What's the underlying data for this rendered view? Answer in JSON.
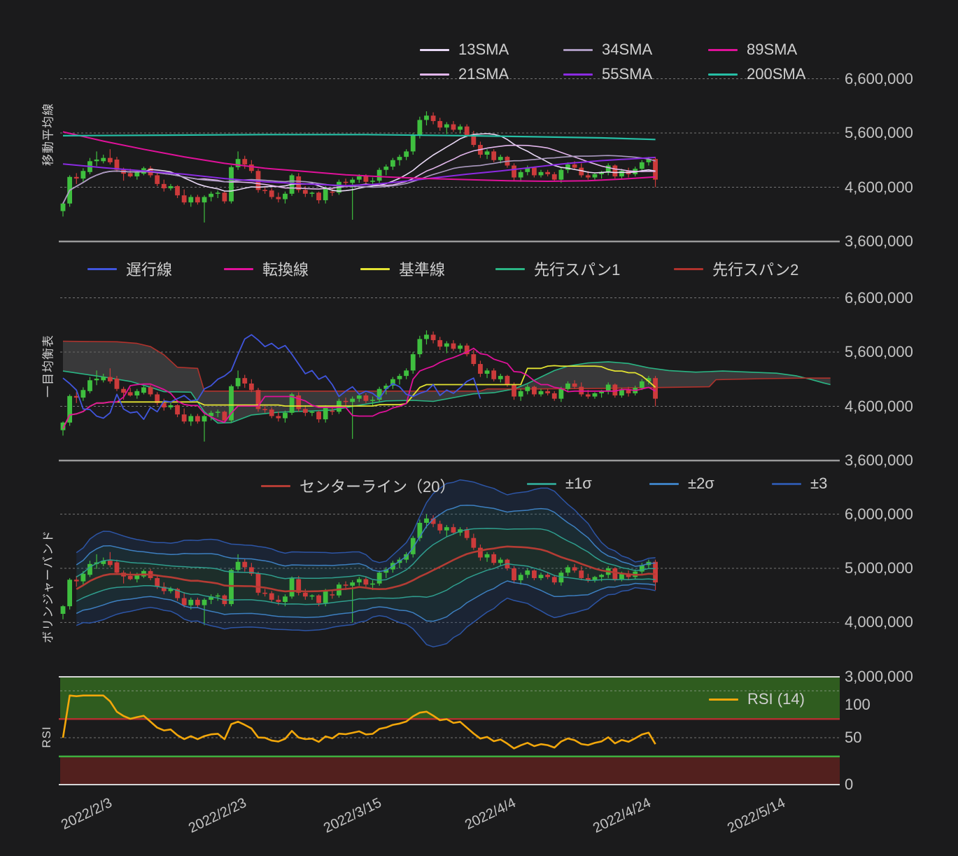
{
  "panels": {
    "sma": {
      "title": "移動平均線"
    },
    "ichimoku": {
      "title": "一目均衡表"
    },
    "bollinger": {
      "title": "ボリンジャーバンド"
    },
    "rsi": {
      "title": "RSI"
    }
  },
  "legends": {
    "sma": [
      {
        "label": "13SMA",
        "color": "#e9d9f6"
      },
      {
        "label": "34SMA",
        "color": "#ab9ac0"
      },
      {
        "label": "89SMA",
        "color": "#e0119a"
      },
      {
        "label": "21SMA",
        "color": "#e2b6ec"
      },
      {
        "label": "55SMA",
        "color": "#8b2be2"
      },
      {
        "label": "200SMA",
        "color": "#26bfa5"
      }
    ],
    "ichimoku": [
      {
        "label": "遅行線",
        "color": "#4055dd"
      },
      {
        "label": "転換線",
        "color": "#e0119a"
      },
      {
        "label": "基準線",
        "color": "#e3e332"
      },
      {
        "label": "先行スパン1",
        "color": "#2ab584"
      },
      {
        "label": "先行スパン2",
        "color": "#b0322c"
      }
    ],
    "bollinger": [
      {
        "label": "センターライン（20）",
        "color": "#b43c34"
      },
      {
        "label": "±1σ",
        "color": "#2f9e8e"
      },
      {
        "label": "±2σ",
        "color": "#3d7fc0"
      },
      {
        "label": "±3",
        "color": "#2d55a6"
      }
    ],
    "rsi": [
      {
        "label": "RSI (14)",
        "color": "#f2a70b"
      }
    ]
  },
  "axes": {
    "x_ticks": [
      {
        "label": "2022/2/3",
        "index": 0
      },
      {
        "label": "2022/2/23",
        "index": 20
      },
      {
        "label": "2022/3/15",
        "index": 40
      },
      {
        "label": "2022/4/4",
        "index": 60
      },
      {
        "label": "2022/4/24",
        "index": 80
      },
      {
        "label": "2022/5/14",
        "index": 100
      }
    ],
    "p1_yticks": [
      {
        "label": "6,600,000",
        "v": 6.6
      },
      {
        "label": "5,600,000",
        "v": 5.6
      },
      {
        "label": "4,600,000",
        "v": 4.6
      },
      {
        "label": "3,600,000",
        "v": 3.6
      }
    ],
    "p2_yticks": [
      {
        "label": "6,600,000",
        "v": 6.6
      },
      {
        "label": "5,600,000",
        "v": 5.6
      },
      {
        "label": "4,600,000",
        "v": 4.6
      },
      {
        "label": "3,600,000",
        "v": 3.6
      }
    ],
    "p3_yticks": [
      {
        "label": "6,000,000",
        "v": 6.0
      },
      {
        "label": "5,000,000",
        "v": 5.0
      },
      {
        "label": "4,000,000",
        "v": 4.0
      },
      {
        "label": "3,000,000",
        "v": 3.0
      }
    ],
    "rsi_yticks": [
      {
        "label": "100",
        "v": 100
      },
      {
        "label": "50",
        "v": 50
      },
      {
        "label": "0",
        "v": 0
      }
    ]
  },
  "colors": {
    "background": "#1b1b1c",
    "grid": "#c0c0c0",
    "panel_border": "#9a9a9a",
    "rsi_border": "#d6d6d6",
    "candle_up": "#3fbf3f",
    "candle_down": "#cc3b3b",
    "cloud_fill": "#585858",
    "bb_fill_outer": "#1e3c6e",
    "bb_fill_mid": "#1e5a6e",
    "bb_fill_inner": "#236456",
    "rsi_overbought_zone": "#2f5c1f",
    "rsi_oversold_zone": "#52201e",
    "rsi_level70_line": "#b03030",
    "rsi_level30_line": "#3fae3f"
  },
  "chart_data": {
    "type": "candlestick-multi-panel",
    "unit": "JPY (millions)",
    "x_start_label": "2022/2/3",
    "x_days_per_candle": 1,
    "ylim_price_panels_1_2": [
      3.6,
      6.6
    ],
    "ylim_price_panel_3": [
      3.0,
      6.2
    ],
    "ylim_rsi": [
      0,
      100
    ],
    "candles_m": [
      [
        4.16,
        4.32,
        4.06,
        4.3
      ],
      [
        4.3,
        4.82,
        4.24,
        4.79
      ],
      [
        4.79,
        4.86,
        4.66,
        4.76
      ],
      [
        4.76,
        4.95,
        4.7,
        4.9
      ],
      [
        4.88,
        5.14,
        4.84,
        5.08
      ],
      [
        5.08,
        5.26,
        4.99,
        5.11
      ],
      [
        5.08,
        5.2,
        5.04,
        5.14
      ],
      [
        5.14,
        5.3,
        5.02,
        5.06
      ],
      [
        5.11,
        5.16,
        4.88,
        4.92
      ],
      [
        4.92,
        4.96,
        4.72,
        4.85
      ],
      [
        4.86,
        4.94,
        4.78,
        4.8
      ],
      [
        4.8,
        4.92,
        4.74,
        4.88
      ],
      [
        4.85,
        4.98,
        4.82,
        4.95
      ],
      [
        4.95,
        4.99,
        4.78,
        4.82
      ],
      [
        4.82,
        4.86,
        4.62,
        4.66
      ],
      [
        4.66,
        4.74,
        4.52,
        4.58
      ],
      [
        4.58,
        4.66,
        4.54,
        4.62
      ],
      [
        4.62,
        4.64,
        4.4,
        4.45
      ],
      [
        4.45,
        4.56,
        4.28,
        4.32
      ],
      [
        4.32,
        4.46,
        4.24,
        4.42
      ],
      [
        4.42,
        4.46,
        4.28,
        4.32
      ],
      [
        4.32,
        4.45,
        3.95,
        4.42
      ],
      [
        4.42,
        4.52,
        4.34,
        4.48
      ],
      [
        4.48,
        4.54,
        4.4,
        4.5
      ],
      [
        4.5,
        4.52,
        4.3,
        4.34
      ],
      [
        4.34,
        5.0,
        4.3,
        4.97
      ],
      [
        4.97,
        5.26,
        4.92,
        5.12
      ],
      [
        5.12,
        5.18,
        4.94,
        5.02
      ],
      [
        5.02,
        5.1,
        4.86,
        4.9
      ],
      [
        4.9,
        4.94,
        4.5,
        4.55
      ],
      [
        4.55,
        4.62,
        4.48,
        4.54
      ],
      [
        4.54,
        4.58,
        4.38,
        4.42
      ],
      [
        4.42,
        4.5,
        4.32,
        4.38
      ],
      [
        4.38,
        4.52,
        4.3,
        4.48
      ],
      [
        4.48,
        4.85,
        4.44,
        4.82
      ],
      [
        4.8,
        4.86,
        4.5,
        4.55
      ],
      [
        4.55,
        4.62,
        4.42,
        4.48
      ],
      [
        4.48,
        4.52,
        4.42,
        4.5
      ],
      [
        4.5,
        4.52,
        4.3,
        4.36
      ],
      [
        4.36,
        4.62,
        4.3,
        4.58
      ],
      [
        4.52,
        4.58,
        4.44,
        4.5
      ],
      [
        4.5,
        4.74,
        4.46,
        4.7
      ],
      [
        4.7,
        4.76,
        4.6,
        4.68
      ],
      [
        4.68,
        4.78,
        4.0,
        4.74
      ],
      [
        4.74,
        4.84,
        4.68,
        4.8
      ],
      [
        4.8,
        4.84,
        4.66,
        4.7
      ],
      [
        4.7,
        4.78,
        4.6,
        4.72
      ],
      [
        4.72,
        4.96,
        4.68,
        4.92
      ],
      [
        4.92,
        5.02,
        4.82,
        4.98
      ],
      [
        4.98,
        5.14,
        4.92,
        5.1
      ],
      [
        5.1,
        5.2,
        5.0,
        5.16
      ],
      [
        5.16,
        5.3,
        5.1,
        5.26
      ],
      [
        5.26,
        5.6,
        5.2,
        5.56
      ],
      [
        5.56,
        5.9,
        5.5,
        5.84
      ],
      [
        5.84,
        6.0,
        5.74,
        5.92
      ],
      [
        5.92,
        5.98,
        5.76,
        5.82
      ],
      [
        5.82,
        5.88,
        5.64,
        5.7
      ],
      [
        5.7,
        5.8,
        5.58,
        5.76
      ],
      [
        5.76,
        5.82,
        5.62,
        5.66
      ],
      [
        5.66,
        5.76,
        5.6,
        5.72
      ],
      [
        5.72,
        5.76,
        5.52,
        5.56
      ],
      [
        5.56,
        5.64,
        5.34,
        5.38
      ],
      [
        5.38,
        5.44,
        5.14,
        5.2
      ],
      [
        5.2,
        5.3,
        5.12,
        5.26
      ],
      [
        5.26,
        5.3,
        5.06,
        5.1
      ],
      [
        5.1,
        5.2,
        5.04,
        5.16
      ],
      [
        5.16,
        5.18,
        4.96,
        5.0
      ],
      [
        5.0,
        5.04,
        4.72,
        4.78
      ],
      [
        4.78,
        4.92,
        4.7,
        4.88
      ],
      [
        4.88,
        5.0,
        4.82,
        4.96
      ],
      [
        4.96,
        4.98,
        4.78,
        4.82
      ],
      [
        4.82,
        4.92,
        4.78,
        4.88
      ],
      [
        4.88,
        4.92,
        4.8,
        4.84
      ],
      [
        4.84,
        4.88,
        4.7,
        4.74
      ],
      [
        4.74,
        4.96,
        4.68,
        4.92
      ],
      [
        4.92,
        5.06,
        4.86,
        5.02
      ],
      [
        5.02,
        5.08,
        4.92,
        4.96
      ],
      [
        4.96,
        5.04,
        4.78,
        4.82
      ],
      [
        4.82,
        4.9,
        4.74,
        4.78
      ],
      [
        4.78,
        4.86,
        4.74,
        4.84
      ],
      [
        4.84,
        4.9,
        4.76,
        4.88
      ],
      [
        4.88,
        5.04,
        4.82,
        5.0
      ],
      [
        5.0,
        5.02,
        4.76,
        4.8
      ],
      [
        4.8,
        4.94,
        4.76,
        4.9
      ],
      [
        4.9,
        4.96,
        4.78,
        4.84
      ],
      [
        4.84,
        4.98,
        4.8,
        4.94
      ],
      [
        4.94,
        5.1,
        4.9,
        5.06
      ],
      [
        5.06,
        5.16,
        5.0,
        5.12
      ],
      [
        5.12,
        5.16,
        4.6,
        4.74
      ]
    ],
    "computed_indicators": {
      "sma_periods_from_closes": [
        13,
        21,
        34
      ],
      "ichimoku": {
        "conversion_period": 9,
        "base_period": 26,
        "lagging_shift": 26
      },
      "bollinger": {
        "period": 20,
        "sigma_multiples": [
          1,
          2,
          3
        ]
      },
      "rsi_period": 14,
      "rsi_levels": {
        "overbought": 70,
        "midline": 50,
        "oversold": 30
      }
    },
    "overlay_lines_m": {
      "sma55": [
        [
          0,
          5.03
        ],
        [
          6,
          4.96
        ],
        [
          12,
          4.9
        ],
        [
          18,
          4.84
        ],
        [
          24,
          4.76
        ],
        [
          30,
          4.7
        ],
        [
          36,
          4.66
        ],
        [
          42,
          4.63
        ],
        [
          46,
          4.65
        ],
        [
          50,
          4.7
        ],
        [
          55,
          4.77
        ],
        [
          60,
          4.84
        ],
        [
          65,
          4.9
        ],
        [
          70,
          4.97
        ],
        [
          75,
          5.04
        ],
        [
          80,
          5.09
        ],
        [
          84,
          5.12
        ],
        [
          88,
          5.15
        ]
      ],
      "sma89": [
        [
          0,
          5.62
        ],
        [
          6,
          5.45
        ],
        [
          12,
          5.3
        ],
        [
          18,
          5.16
        ],
        [
          24,
          5.04
        ],
        [
          30,
          4.95
        ],
        [
          36,
          4.89
        ],
        [
          42,
          4.83
        ],
        [
          48,
          4.79
        ],
        [
          54,
          4.76
        ],
        [
          60,
          4.74
        ],
        [
          66,
          4.72
        ],
        [
          72,
          4.71
        ],
        [
          78,
          4.72
        ],
        [
          83,
          4.75
        ],
        [
          88,
          4.79
        ]
      ],
      "sma200": [
        [
          0,
          5.55
        ],
        [
          15,
          5.56
        ],
        [
          30,
          5.57
        ],
        [
          45,
          5.57
        ],
        [
          60,
          5.55
        ],
        [
          70,
          5.53
        ],
        [
          80,
          5.51
        ],
        [
          88,
          5.48
        ]
      ],
      "senkou_span1": [
        [
          0,
          5.25
        ],
        [
          6,
          5.14
        ],
        [
          10,
          5.06
        ],
        [
          13,
          4.95
        ],
        [
          15,
          4.87
        ],
        [
          19,
          4.86
        ],
        [
          21,
          4.5
        ],
        [
          23,
          4.29
        ],
        [
          25,
          4.3
        ],
        [
          28,
          4.44
        ],
        [
          32,
          4.49
        ],
        [
          36,
          4.51
        ],
        [
          40,
          4.53
        ],
        [
          44,
          4.62
        ],
        [
          48,
          4.7
        ],
        [
          52,
          4.71
        ],
        [
          55,
          4.69
        ],
        [
          58,
          4.76
        ],
        [
          61,
          4.83
        ],
        [
          64,
          4.85
        ],
        [
          67,
          4.92
        ],
        [
          69,
          5.02
        ],
        [
          71,
          5.14
        ],
        [
          73,
          5.26
        ],
        [
          75,
          5.34
        ],
        [
          78,
          5.4
        ],
        [
          81,
          5.42
        ],
        [
          84,
          5.39
        ],
        [
          87,
          5.31
        ],
        [
          90,
          5.26
        ],
        [
          94,
          5.23
        ],
        [
          98,
          5.25
        ],
        [
          102,
          5.23
        ],
        [
          106,
          5.21
        ],
        [
          109,
          5.16
        ],
        [
          111,
          5.1
        ],
        [
          113,
          5.03
        ],
        [
          114,
          5.0
        ]
      ],
      "senkou_span2": [
        [
          0,
          5.8
        ],
        [
          8,
          5.79
        ],
        [
          11,
          5.76
        ],
        [
          13,
          5.7
        ],
        [
          15,
          5.55
        ],
        [
          17,
          5.32
        ],
        [
          20,
          5.3
        ],
        [
          21,
          4.88
        ],
        [
          40,
          4.88
        ],
        [
          62,
          4.88
        ],
        [
          63,
          4.92
        ],
        [
          70,
          4.92
        ],
        [
          80,
          4.93
        ],
        [
          90,
          4.95
        ],
        [
          96,
          4.96
        ],
        [
          97,
          5.09
        ],
        [
          104,
          5.11
        ],
        [
          110,
          5.12
        ],
        [
          114,
          5.12
        ]
      ]
    }
  }
}
